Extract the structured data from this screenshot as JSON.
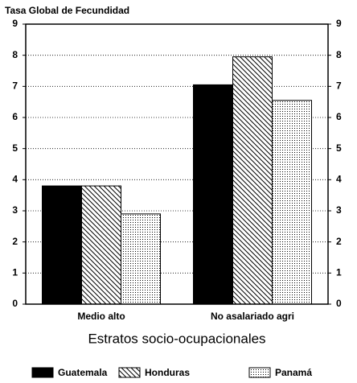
{
  "chart_data": {
    "type": "bar",
    "title": "Tasa Global de Fecundidad",
    "x_label": "Estratos socio-ocupacionales",
    "categories": [
      "Medio alto",
      "No asalariado agri"
    ],
    "series": [
      {
        "name": "Guatemala",
        "color": "#000000",
        "pattern": "solid",
        "values": [
          3.8,
          7.05
        ]
      },
      {
        "name": "Honduras",
        "color": "#000000",
        "pattern": "hatch",
        "values": [
          3.8,
          7.95
        ]
      },
      {
        "name": "Panamá",
        "color": "#000000",
        "pattern": "dots",
        "values": [
          2.9,
          6.55
        ]
      }
    ],
    "ylim": [
      0,
      9
    ],
    "yticks": [
      0,
      1,
      2,
      3,
      4,
      5,
      6,
      7,
      8,
      9
    ],
    "grid": true,
    "legend": "bottom"
  }
}
